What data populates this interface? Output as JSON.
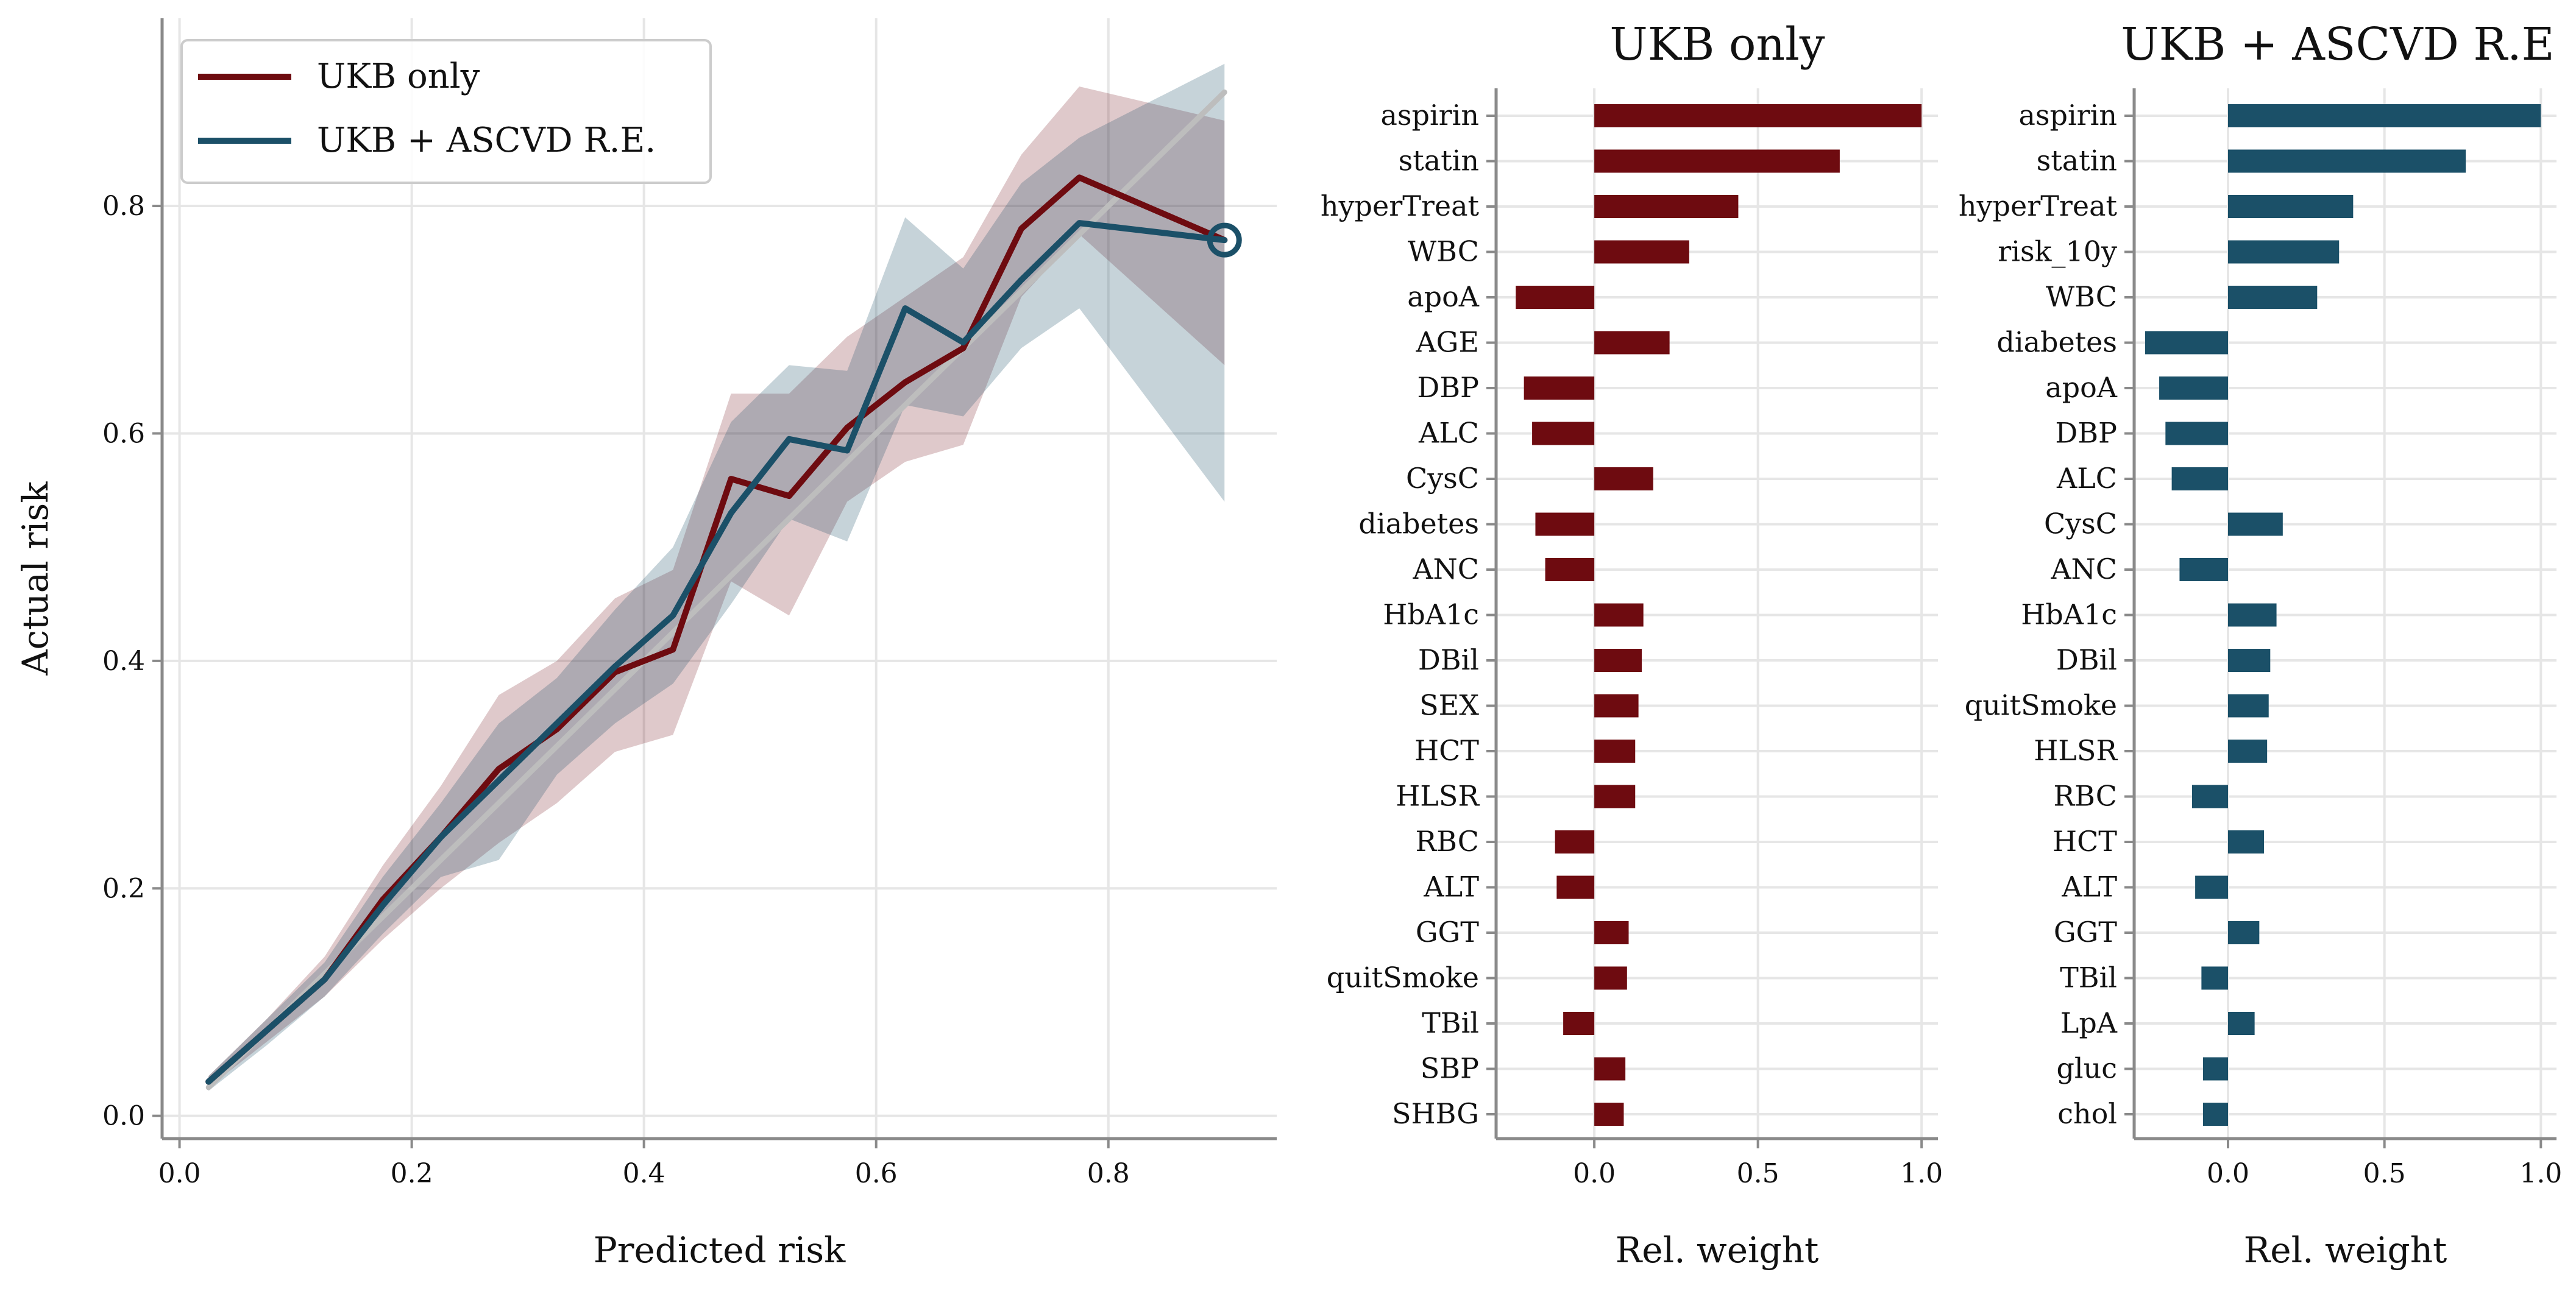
{
  "colors": {
    "ukb": "#6e0b10",
    "ascvd": "#1b5068",
    "diagonal": "#bdbdbd",
    "grid": "#e6e6e6",
    "axis": "#8a8a8a"
  },
  "chart_data": [
    {
      "type": "line",
      "title": "",
      "xlabel": "Predicted risk",
      "ylabel": "Actual risk",
      "xlim": [
        -0.015,
        0.945
      ],
      "ylim": [
        -0.02,
        0.965
      ],
      "xticks": [
        "0.0",
        "0.2",
        "0.4",
        "0.6",
        "0.8"
      ],
      "yticks": [
        "0.0",
        "0.2",
        "0.4",
        "0.6",
        "0.8"
      ],
      "grid": true,
      "legend_position": "top-left",
      "reference_line": {
        "x": [
          0.025,
          0.9
        ],
        "y": [
          0.025,
          0.9
        ]
      },
      "x": [
        0.025,
        0.075,
        0.125,
        0.175,
        0.225,
        0.275,
        0.325,
        0.375,
        0.425,
        0.475,
        0.525,
        0.575,
        0.625,
        0.675,
        0.725,
        0.775,
        0.9
      ],
      "series": [
        {
          "name": "UKB only",
          "color": "#6e0b10",
          "values": [
            0.03,
            0.075,
            0.12,
            0.19,
            0.245,
            0.305,
            0.34,
            0.39,
            0.41,
            0.56,
            0.545,
            0.605,
            0.645,
            0.675,
            0.78,
            0.825,
            0.77
          ],
          "upper": [
            0.035,
            0.085,
            0.14,
            0.22,
            0.29,
            0.37,
            0.4,
            0.455,
            0.48,
            0.635,
            0.635,
            0.685,
            0.72,
            0.755,
            0.845,
            0.905,
            0.875
          ],
          "lower": [
            0.025,
            0.065,
            0.105,
            0.155,
            0.2,
            0.24,
            0.275,
            0.32,
            0.335,
            0.47,
            0.44,
            0.54,
            0.575,
            0.59,
            0.72,
            0.775,
            0.66
          ]
        },
        {
          "name": "UKB + ASCVD R.E.",
          "color": "#1b5068",
          "values": [
            0.03,
            0.075,
            0.12,
            0.185,
            0.245,
            0.295,
            0.345,
            0.395,
            0.44,
            0.53,
            0.595,
            0.585,
            0.71,
            0.68,
            0.735,
            0.785,
            0.77
          ],
          "upper": [
            0.035,
            0.085,
            0.135,
            0.21,
            0.275,
            0.345,
            0.385,
            0.445,
            0.5,
            0.61,
            0.66,
            0.655,
            0.79,
            0.745,
            0.82,
            0.86,
            0.925
          ],
          "lower": [
            0.022,
            0.062,
            0.105,
            0.16,
            0.21,
            0.225,
            0.3,
            0.345,
            0.38,
            0.45,
            0.525,
            0.505,
            0.625,
            0.615,
            0.675,
            0.71,
            0.54
          ]
        }
      ]
    },
    {
      "type": "bar",
      "title": "UKB only",
      "xlabel": "Rel. weight",
      "xlim": [
        -0.3,
        1.05
      ],
      "xticks": [
        "0.0",
        "0.5",
        "1.0"
      ],
      "grid": true,
      "color": "#6e0b10",
      "categories": [
        "aspirin",
        "statin",
        "hyperTreat",
        "WBC",
        "apoA",
        "AGE",
        "DBP",
        "ALC",
        "CysC",
        "diabetes",
        "ANC",
        "HbA1c",
        "DBil",
        "SEX",
        "HCT",
        "HLSR",
        "RBC",
        "ALT",
        "GGT",
        "quitSmoke",
        "TBil",
        "SBP",
        "SHBG"
      ],
      "values": [
        1.0,
        0.75,
        0.44,
        0.29,
        -0.24,
        0.23,
        -0.215,
        -0.19,
        0.18,
        -0.18,
        -0.15,
        0.15,
        0.145,
        0.135,
        0.125,
        0.125,
        -0.12,
        -0.115,
        0.105,
        0.1,
        -0.095,
        0.095,
        0.09
      ]
    },
    {
      "type": "bar",
      "title": "UKB + ASCVD R.E",
      "xlabel": "Rel. weight",
      "xlim": [
        -0.3,
        1.05
      ],
      "xticks": [
        "0.0",
        "0.5",
        "1.0"
      ],
      "grid": true,
      "color": "#1b5068",
      "categories": [
        "aspirin",
        "statin",
        "hyperTreat",
        "risk_10y",
        "WBC",
        "diabetes",
        "apoA",
        "DBP",
        "ALC",
        "CysC",
        "ANC",
        "HbA1c",
        "DBil",
        "quitSmoke",
        "HLSR",
        "RBC",
        "HCT",
        "ALT",
        "GGT",
        "TBil",
        "LpA",
        "gluc",
        "chol"
      ],
      "values": [
        1.0,
        0.76,
        0.4,
        0.355,
        0.285,
        -0.265,
        -0.22,
        -0.2,
        -0.18,
        0.175,
        -0.155,
        0.155,
        0.135,
        0.13,
        0.125,
        -0.115,
        0.115,
        -0.105,
        0.1,
        -0.085,
        0.085,
        -0.08,
        -0.08
      ]
    }
  ]
}
